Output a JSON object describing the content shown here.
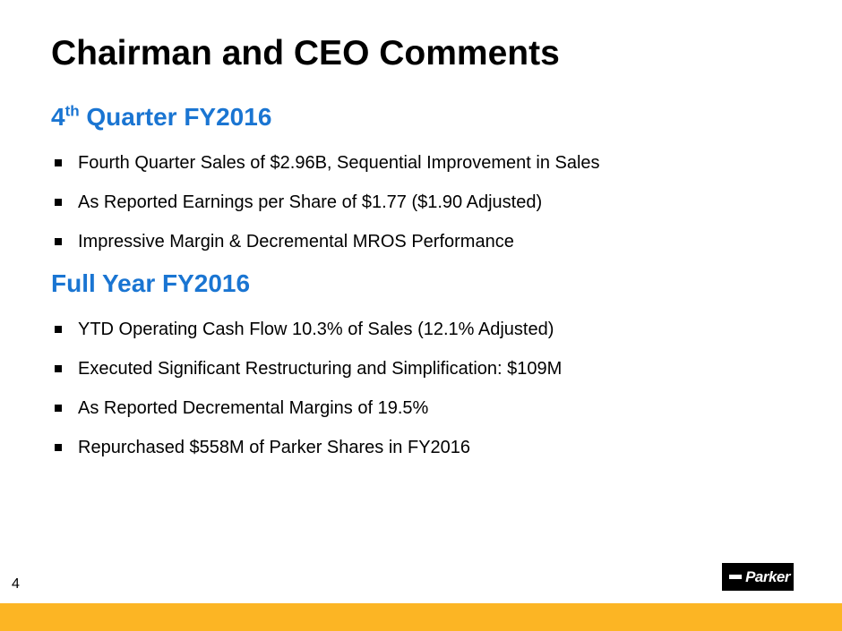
{
  "slide": {
    "title": "Chairman and CEO Comments",
    "page_number": "4"
  },
  "sections": [
    {
      "heading_prefix": "4",
      "heading_superscript": "th",
      "heading_suffix": " Quarter FY2016",
      "bullets": [
        "Fourth Quarter Sales of $2.96B, Sequential Improvement in Sales",
        "As Reported Earnings per Share of $1.77 ($1.90 Adjusted)",
        "Impressive Margin & Decremental MROS Performance"
      ]
    },
    {
      "heading": "Full Year FY2016",
      "bullets": [
        "YTD Operating Cash Flow 10.3% of Sales (12.1% Adjusted)",
        "Executed Significant Restructuring and Simplification: $109M",
        "As Reported Decremental Margins of 19.5%",
        "Repurchased $558M of Parker Shares in FY2016"
      ]
    }
  ],
  "logo": {
    "text": "Parker"
  },
  "colors": {
    "heading": "#1a75d2",
    "footer_bar": "#fcb524",
    "text": "#000000"
  }
}
